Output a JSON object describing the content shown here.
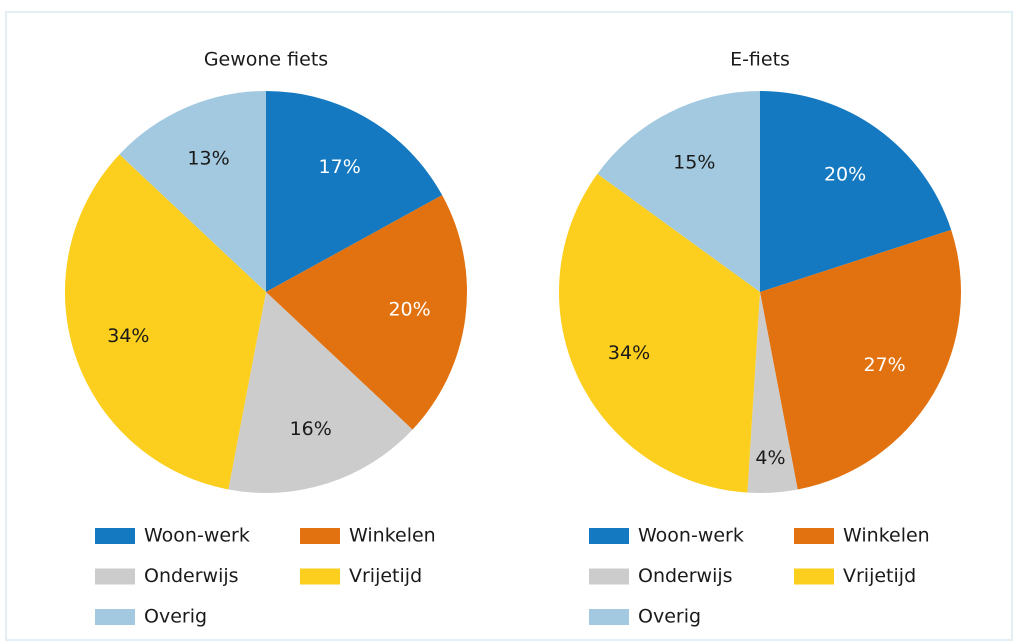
{
  "chart_data": [
    {
      "type": "pie",
      "title": "Gewone fiets",
      "categories": [
        "Woon-werk",
        "Winkelen",
        "Onderwijs",
        "Vrijetijd",
        "Overig"
      ],
      "values": [
        17,
        20,
        16,
        34,
        13
      ],
      "value_labels": [
        "17%",
        "20%",
        "16%",
        "34%",
        "13%"
      ],
      "colors": [
        "#1479c0",
        "#e2720f",
        "#cccccc",
        "#fcce1d",
        "#a2c9e0"
      ]
    },
    {
      "type": "pie",
      "title": "E-fiets",
      "categories": [
        "Woon-werk",
        "Winkelen",
        "Onderwijs",
        "Vrijetijd",
        "Overig"
      ],
      "values": [
        20,
        27,
        4,
        34,
        15
      ],
      "value_labels": [
        "20%",
        "27%",
        "4%",
        "34%",
        "15%"
      ],
      "colors": [
        "#1479c0",
        "#e2720f",
        "#cccccc",
        "#fcce1d",
        "#a2c9e0"
      ]
    }
  ]
}
